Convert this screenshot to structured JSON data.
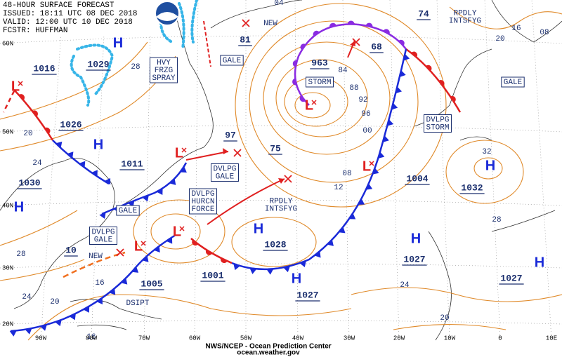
{
  "header": {
    "title": "48-HOUR SURFACE FORECAST",
    "issued": "ISSUED: 18:11 UTC 08 DEC 2018",
    "valid": "VALID: 12:00 UTC 10 DEC 2018",
    "forecaster": "FCSTR: HUFFMAN"
  },
  "footer": {
    "agency": "NWS/NCEP - Ocean Prediction Center",
    "website": "ocean.weather.gov"
  },
  "symbols": {
    "high": "H",
    "low": "L"
  },
  "pressure_labels": [
    "1016",
    "1029",
    "1026",
    "1011",
    "1030",
    "10",
    "1005",
    "1001",
    "1028",
    "1027",
    "1027",
    "1027",
    "1004",
    "1032",
    "963",
    "68",
    "74",
    "81",
    "97",
    "75"
  ],
  "isobar_labels": [
    "28",
    "20",
    "24",
    "28",
    "24",
    "20",
    "16",
    "16",
    "04",
    "84",
    "88",
    "92",
    "96",
    "00",
    "08",
    "12",
    "16",
    "08",
    "20",
    "32",
    "28",
    "24",
    "20"
  ],
  "annotations": [
    [
      "HVY",
      "FRZG",
      "SPRAY"
    ],
    [
      "GALE"
    ],
    [
      "STORM"
    ],
    [
      "GALE"
    ],
    [
      "DVLPG",
      "STORM"
    ],
    [
      "DVLPG",
      "GALE"
    ],
    [
      "DVLPG",
      "HURCN",
      "FORCE"
    ],
    [
      "GALE"
    ],
    [
      "DVLPG",
      "GALE"
    ],
    [
      "RPDLY",
      "INTSFYG"
    ],
    [
      "RPDLY",
      "INTSFYG"
    ],
    [
      "NEW"
    ],
    [
      "NEW"
    ],
    [
      "DSIPT"
    ]
  ],
  "latitude_labels": [
    "60N",
    "50N",
    "40N",
    "30N",
    "20N"
  ],
  "longitude_labels": [
    "90W",
    "80W",
    "70W",
    "60W",
    "50W",
    "40W",
    "30W",
    "20W",
    "10W",
    "0",
    "10E"
  ]
}
